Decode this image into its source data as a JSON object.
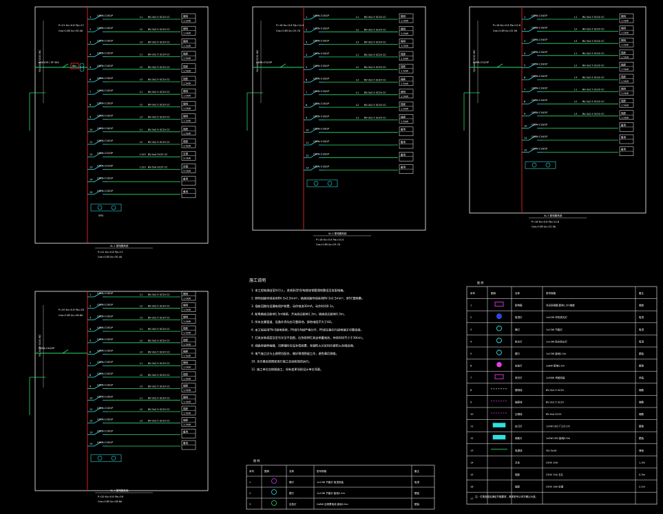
{
  "panels": [
    {
      "id": "A",
      "title": "AL-1 配电箱系统",
      "subtitle1": "P=21  Kx=0.8  Pjs=17",
      "subtitle2": "Cos=0.85  Ijs=30.4A",
      "incoming": "YJV-5x16 SC40 WC",
      "breaker_main": "NSX100 / 3P 40A",
      "spd": "SPD",
      "meter": "Wh",
      "circuits": [
        {
          "no": "1",
          "breaker": "C65N-C16/1P",
          "cable": "BV-3x2.5 SC20 CC",
          "phase": "L1",
          "load": "照明",
          "kw": "1.2kW"
        },
        {
          "no": "2",
          "breaker": "C65N-C16/1P",
          "cable": "BV-3x2.5 SC20 CC",
          "phase": "L2",
          "load": "照明",
          "kw": "1.0kW"
        },
        {
          "no": "3",
          "breaker": "C65N-C16/1P",
          "cable": "BV-3x2.5 SC20 CC",
          "phase": "L3",
          "load": "照明",
          "kw": "1.1kW"
        },
        {
          "no": "4",
          "breaker": "C65N-C16/1P",
          "cable": "BV-3x2.5 SC20 CC",
          "phase": "L1",
          "load": "插座",
          "kw": "1.5kW"
        },
        {
          "no": "5",
          "breaker": "C65N-C16/1P",
          "cable": "BV-3x2.5 SC20 CC",
          "phase": "L2",
          "load": "插座",
          "kw": "1.5kW"
        },
        {
          "no": "6",
          "breaker": "C65N-C16/1P",
          "cable": "BV-3x2.5 SC20 CC",
          "phase": "L3",
          "load": "插座",
          "kw": "1.5kW"
        },
        {
          "no": "7",
          "breaker": "C65N-C16/1P",
          "cable": "BV-3x2.5 SC20 CC",
          "phase": "L1",
          "load": "照明",
          "kw": "1.0kW"
        },
        {
          "no": "8",
          "breaker": "C65N-C16/1P",
          "cable": "BV-3x2.5 SC20 CC",
          "phase": "L2",
          "load": "照明",
          "kw": "1.0kW"
        },
        {
          "no": "9",
          "breaker": "C65N-C16/1P",
          "cable": "BV-3x2.5 SC20 CC",
          "phase": "L3",
          "load": "照明",
          "kw": "1.2kW"
        },
        {
          "no": "10",
          "breaker": "C65N-C16/1P",
          "cable": "BV-3x2.5 SC20 CC",
          "phase": "L1",
          "load": "插座",
          "kw": "1.5kW"
        },
        {
          "no": "11",
          "breaker": "C65N-C16/1P",
          "cable": "BV-3x2.5 SC20 CC",
          "phase": "L2",
          "load": "插座",
          "kw": "1.5kW"
        },
        {
          "no": "12",
          "breaker": "C65N-C20/3P",
          "cable": "BV-5x4 SC25 CC",
          "phase": "L123",
          "load": "空调",
          "kw": "3.0kW"
        },
        {
          "no": "13",
          "breaker": "C65N-C20/3P",
          "cable": "BV-5x4 SC25 CC",
          "phase": "L123",
          "load": "空调",
          "kw": "3.0kW"
        },
        {
          "no": "14",
          "breaker": "C65N-C16/1P",
          "cable": "",
          "phase": "",
          "load": "备用",
          "kw": ""
        },
        {
          "no": "15",
          "breaker": "C65N-C16/1P",
          "cable": "",
          "phase": "",
          "load": "备用",
          "kw": ""
        }
      ]
    },
    {
      "id": "B",
      "title": "AL-2 配电箱系统",
      "subtitle1": "P=18  Kx=0.8  Pjs=14.4",
      "subtitle2": "Cos=0.85  Ijs=25.7A",
      "incoming": "YJV-5x10 SC32 WC",
      "breaker_main": "C65N-C32/3P",
      "circuits": [
        {
          "no": "1",
          "breaker": "C65N-C16/1P",
          "cable": "BV-3x2.5 SC20 CC",
          "phase": "L1",
          "load": "照明",
          "kw": "1.0kW"
        },
        {
          "no": "2",
          "breaker": "C65N-C16/1P",
          "cable": "BV-3x2.5 SC20 CC",
          "phase": "L2",
          "load": "照明",
          "kw": "1.0kW"
        },
        {
          "no": "3",
          "breaker": "C65N-C16/1P",
          "cable": "BV-3x2.5 SC20 CC",
          "phase": "L3",
          "load": "照明",
          "kw": "1.0kW"
        },
        {
          "no": "4",
          "breaker": "C65N-C16/1P",
          "cable": "BV-3x2.5 SC20 CC",
          "phase": "L1",
          "load": "插座",
          "kw": "1.5kW"
        },
        {
          "no": "5",
          "breaker": "C65N-C16/1P",
          "cable": "BV-3x2.5 SC20 CC",
          "phase": "L2",
          "load": "插座",
          "kw": "1.5kW"
        },
        {
          "no": "6",
          "breaker": "C65N-C16/1P",
          "cable": "BV-3x2.5 SC20 CC",
          "phase": "L3",
          "load": "插座",
          "kw": "1.5kW"
        },
        {
          "no": "7",
          "breaker": "C65N-C16/1P",
          "cable": "BV-3x2.5 SC20 CC",
          "phase": "L1",
          "load": "照明",
          "kw": "1.0kW"
        },
        {
          "no": "8",
          "breaker": "C65N-C16/1P",
          "cable": "BV-3x2.5 SC20 CC",
          "phase": "L2",
          "load": "插座",
          "kw": "1.5kW"
        },
        {
          "no": "9",
          "breaker": "C65N-C16/1P",
          "cable": "BV-3x2.5 SC20 CC",
          "phase": "L3",
          "load": "插座",
          "kw": "1.5kW"
        },
        {
          "no": "10",
          "breaker": "C65N-C16/1P",
          "cable": "",
          "phase": "",
          "load": "备用",
          "kw": ""
        },
        {
          "no": "11",
          "breaker": "C65N-C16/1P",
          "cable": "",
          "phase": "",
          "load": "备用",
          "kw": ""
        },
        {
          "no": "12",
          "breaker": "C65N-C16/1P",
          "cable": "",
          "phase": "",
          "load": "备用",
          "kw": ""
        },
        {
          "no": "13",
          "breaker": "C65N-C16/1P",
          "cable": "",
          "phase": "",
          "load": "备用",
          "kw": ""
        }
      ]
    },
    {
      "id": "C",
      "title": "AL-3 配电箱系统",
      "subtitle1": "P=16  Kx=0.8  Pjs=12.8",
      "subtitle2": "Cos=0.85  Ijs=22.9A",
      "incoming": "YJV-5x10 SC32 WC",
      "breaker_main": "C65N-C32/3P",
      "circuits": [
        {
          "no": "1",
          "breaker": "C65N-C16/1P",
          "cable": "BV-3x2.5 SC20 CC",
          "phase": "L1",
          "load": "照明",
          "kw": "1.0kW"
        },
        {
          "no": "2",
          "breaker": "C65N-C16/1P",
          "cable": "BV-3x2.5 SC20 CC",
          "phase": "L2",
          "load": "照明",
          "kw": "1.0kW"
        },
        {
          "no": "3",
          "breaker": "C65N-C16/1P",
          "cable": "BV-3x2.5 SC20 CC",
          "phase": "L3",
          "load": "照明",
          "kw": "1.0kW"
        },
        {
          "no": "4",
          "breaker": "C65N-C16/1P",
          "cable": "BV-3x2.5 SC20 CC",
          "phase": "L1",
          "load": "插座",
          "kw": "1.5kW"
        },
        {
          "no": "5",
          "breaker": "C65N-C16/1P",
          "cable": "BV-3x2.5 SC20 CC",
          "phase": "L2",
          "load": "插座",
          "kw": "1.5kW"
        },
        {
          "no": "6",
          "breaker": "C65N-C16/1P",
          "cable": "BV-3x2.5 SC20 CC",
          "phase": "L3",
          "load": "插座",
          "kw": "1.5kW"
        },
        {
          "no": "7",
          "breaker": "C65N-C16/1P",
          "cable": "BV-3x2.5 SC20 CC",
          "phase": "L1",
          "load": "照明",
          "kw": "1.0kW"
        },
        {
          "no": "8",
          "breaker": "C65N-C16/1P",
          "cable": "BV-3x2.5 SC20 CC",
          "phase": "L2",
          "load": "插座",
          "kw": "1.5kW"
        },
        {
          "no": "9",
          "breaker": "C65N-C16/1P",
          "cable": "BV-3x2.5 SC20 CC",
          "phase": "L3",
          "load": "插座",
          "kw": "1.5kW"
        },
        {
          "no": "10",
          "breaker": "C65N-C16/1P",
          "cable": "",
          "phase": "",
          "load": "备用",
          "kw": ""
        },
        {
          "no": "11",
          "breaker": "C65N-C16/1P",
          "cable": "",
          "phase": "",
          "load": "备用",
          "kw": ""
        },
        {
          "no": "12",
          "breaker": "C65N-C16/1P",
          "cable": "",
          "phase": "",
          "load": "备用",
          "kw": ""
        }
      ]
    },
    {
      "id": "D",
      "title": "AL-4 配电箱系统",
      "subtitle1": "P=20  Kx=0.8  Pjs=16",
      "subtitle2": "Cos=0.85  Ijs=28.6A",
      "incoming": "YJV-5x16 SC40 WC",
      "breaker_main": "C65N-C40/3P",
      "circuits": [
        {
          "no": "1",
          "breaker": "C65N-C16/1P",
          "cable": "BV-3x2.5 SC20 CC",
          "phase": "L1",
          "load": "照明",
          "kw": "1.0kW"
        },
        {
          "no": "2",
          "breaker": "C65N-C16/1P",
          "cable": "BV-3x2.5 SC20 CC",
          "phase": "L2",
          "load": "照明",
          "kw": "1.0kW"
        },
        {
          "no": "3",
          "breaker": "C65N-C16/1P",
          "cable": "BV-3x2.5 SC20 CC",
          "phase": "L3",
          "load": "照明",
          "kw": "1.0kW"
        },
        {
          "no": "4",
          "breaker": "C65N-C16/1P",
          "cable": "BV-3x2.5 SC20 CC",
          "phase": "L1",
          "load": "插座",
          "kw": "1.5kW"
        },
        {
          "no": "5",
          "breaker": "C65N-C16/1P",
          "cable": "BV-3x2.5 SC20 CC",
          "phase": "L2",
          "load": "插座",
          "kw": "1.5kW"
        },
        {
          "no": "6",
          "breaker": "C65N-C16/1P",
          "cable": "BV-3x2.5 SC20 CC",
          "phase": "L3",
          "load": "插座",
          "kw": "1.5kW"
        },
        {
          "no": "7",
          "breaker": "C65N-C16/1P",
          "cable": "BV-3x2.5 SC20 CC",
          "phase": "L1",
          "load": "照明",
          "kw": "1.0kW"
        },
        {
          "no": "8",
          "breaker": "C65N-C16/1P",
          "cable": "BV-3x2.5 SC20 CC",
          "phase": "L2",
          "load": "插座",
          "kw": "1.5kW"
        },
        {
          "no": "9",
          "breaker": "C65N-C16/1P",
          "cable": "BV-3x2.5 SC20 CC",
          "phase": "L3",
          "load": "插座",
          "kw": "1.5kW"
        },
        {
          "no": "10",
          "breaker": "C65N-C16/1P",
          "cable": "BV-3x2.5 SC20 CC",
          "phase": "L1",
          "load": "照明",
          "kw": "1.0kW"
        },
        {
          "no": "11",
          "breaker": "C65N-C16/1P",
          "cable": "BV-3x2.5 SC20 CC",
          "phase": "L2",
          "load": "插座",
          "kw": "1.5kW"
        },
        {
          "no": "12",
          "breaker": "C65N-C16/1P",
          "cable": "BV-3x2.5 SC20 CC",
          "phase": "L3",
          "load": "插座",
          "kw": "1.5kW"
        },
        {
          "no": "13",
          "breaker": "C65N-C16/1P",
          "cable": "",
          "phase": "",
          "load": "备用",
          "kw": ""
        },
        {
          "no": "14",
          "breaker": "C65N-C16/1P",
          "cable": "",
          "phase": "",
          "load": "备用",
          "kw": ""
        }
      ]
    }
  ],
  "notes": {
    "title": "施工说明",
    "lines": [
      "1. 本工程电源由室外引入，进线采用YJV电缆穿钢管埋地敷设至各配电箱。",
      "2. 照明回路导线采用BV-3x2.5mm²，插座回路导线采用BV-3x2.5mm²，穿SC管暗敷。",
      "3. 插座回路均设漏电保护装置，动作电流30mA，动作时间0.1s。",
      "4. 配电箱底边距地1.5m暗装，开关底边距地1.3m，插座底边距地0.3m。",
      "5. 所有金属管道、设备外壳均应可靠接地，接地电阻不大于4Ω。",
      "6. 本工程采用TN-S接地系统，PE线与N线严格分开，PE线在箱内与接地端子可靠连接。",
      "7. 灯具安装高度及型号详见平面图，应急照明灯具自带蓄电池，持续时间不少于30min。",
      "8. 线路穿越伸缩缝、沉降缝时应设补偿装置，穿越防火分区时应做防火封堵处理。",
      "9. 电气施工应与土建密切配合，做好预埋预留工作，避免事后剔凿。",
      "10. 未尽事宜按国家现行施工及验收规范执行。",
      "11. 施工单位应按图施工，如有变更须经设计单位同意。"
    ]
  },
  "small_legend": {
    "title": "图 例",
    "headers": [
      "序号",
      "图例",
      "名称",
      "型号规格",
      "备注"
    ],
    "rows": [
      {
        "no": "1",
        "name": "筒灯",
        "spec": "1x13W 节能灯 吸顶安装",
        "note": "吸顶"
      },
      {
        "no": "2",
        "name": "壁灯",
        "spec": "1x13W 节能灯 距地2.2m",
        "note": "壁装"
      },
      {
        "no": "3",
        "name": "应急灯",
        "spec": "2x8W 自带蓄电池 距地2.5m",
        "note": "壁装"
      }
    ]
  },
  "big_legend": {
    "title": "图 例",
    "headers": [
      "序号",
      "图例",
      "名称",
      "型号规格",
      "备注"
    ],
    "rows": [
      {
        "no": "1",
        "name": "配电箱",
        "spec": "详见系统图 距地1.5m暗装",
        "note": "暗装"
      },
      {
        "no": "2",
        "name": "吸顶灯",
        "spec": "1x22W 环形荧光灯",
        "note": "吸顶"
      },
      {
        "no": "3",
        "name": "筒灯",
        "spec": "1x13W 节能灯",
        "note": "吸顶"
      },
      {
        "no": "4",
        "name": "防水灯",
        "spec": "1x13W 防水防尘灯",
        "note": "吸顶"
      },
      {
        "no": "5",
        "name": "壁灯",
        "spec": "1x13W 距地2.2m",
        "note": "壁装"
      },
      {
        "no": "6",
        "name": "应急灯",
        "spec": "2x8W 距地2.5m",
        "note": "壁装"
      },
      {
        "no": "7",
        "name": "荧光灯",
        "spec": "1x36W 吊链安装",
        "note": "吊装"
      },
      {
        "no": "8",
        "name": "照明线",
        "spec": "BV-3x2.5 SC20",
        "note": "暗敷"
      },
      {
        "no": "9",
        "name": "插座线",
        "spec": "BV-3x2.5 SC20",
        "note": "暗敷"
      },
      {
        "no": "10",
        "name": "空调线",
        "spec": "BV-5x4 SC25",
        "note": "暗敷"
      },
      {
        "no": "11",
        "name": "出口灯",
        "spec": "1x3W LED 门上0.2m",
        "note": "壁装"
      },
      {
        "no": "12",
        "name": "疏散灯",
        "spec": "1x3W LED 距地0.5m",
        "note": "壁装"
      },
      {
        "no": "13",
        "name": "电源线",
        "spec": "YJV-5x16",
        "note": "埋地"
      },
      {
        "no": "14",
        "name": "开关",
        "spec": "250V 10A",
        "note": "1.3m"
      },
      {
        "no": "15",
        "name": "插座",
        "spec": "250V 10A 五孔",
        "note": "0.3m"
      },
      {
        "no": "16",
        "name": "插座",
        "spec": "250V 16A 空调",
        "note": "2.2m"
      },
      {
        "no": "17",
        "name": "",
        "spec": "",
        "note": ""
      }
    ],
    "footnote": "注：灯具选型应满足节能要求，具体型号以甲方确认为准。"
  }
}
